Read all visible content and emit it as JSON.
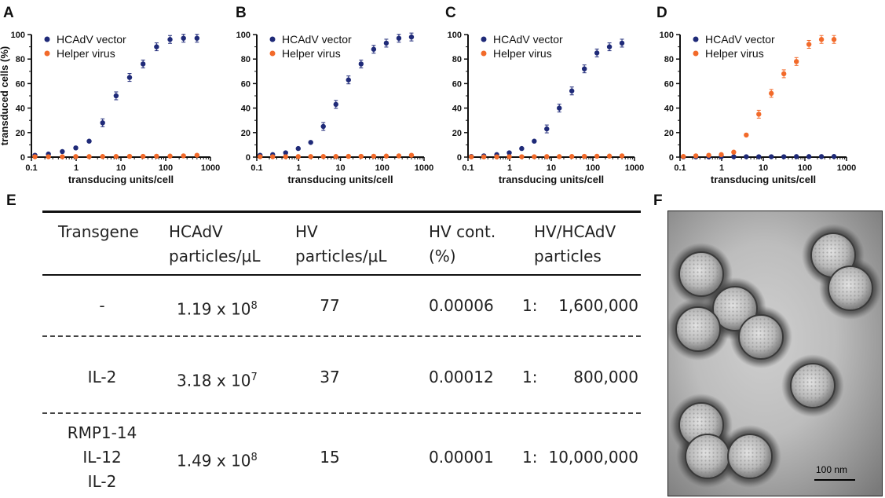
{
  "panels": {
    "A": "A",
    "B": "B",
    "C": "C",
    "D": "D",
    "E": "E",
    "F": "F"
  },
  "colors": {
    "hcadv": "#1f2a78",
    "helper": "#f26a2a",
    "axis": "#111111"
  },
  "legend_symbol": "●",
  "chart_data": [
    {
      "panel": "A",
      "type": "scatter",
      "xlabel": "transducing units/cell",
      "ylabel": "transduced cells (%)",
      "xscale": "log",
      "xlim": [
        0.1,
        1000
      ],
      "ylim": [
        0,
        100
      ],
      "xticks": [
        "0.1",
        "1",
        "10",
        "100",
        "1000"
      ],
      "yticks": [
        "0",
        "20",
        "40",
        "60",
        "80",
        "100"
      ],
      "legend_position": "top-left",
      "series": [
        {
          "name": "HCAdV vector",
          "x": [
            0.12,
            0.24,
            0.49,
            0.98,
            1.95,
            3.9,
            7.8,
            15.6,
            31.2,
            62.5,
            125,
            250,
            500
          ],
          "y": [
            1.5,
            2.5,
            4.5,
            7.5,
            13,
            28,
            50,
            65,
            76,
            90,
            96,
            97,
            97
          ]
        },
        {
          "name": "Helper virus",
          "x": [
            0.12,
            0.24,
            0.49,
            0.98,
            1.95,
            3.9,
            7.8,
            15.6,
            31.2,
            62.5,
            125,
            250,
            500
          ],
          "y": [
            0.3,
            0.3,
            0.3,
            0.4,
            0.4,
            0.5,
            0.5,
            0.6,
            0.6,
            0.7,
            0.8,
            1,
            1.5
          ]
        }
      ]
    },
    {
      "panel": "B",
      "type": "scatter",
      "xlabel": "transducing units/cell",
      "ylabel": "",
      "xscale": "log",
      "xlim": [
        0.1,
        1000
      ],
      "ylim": [
        0,
        100
      ],
      "xticks": [
        "0.1",
        "1",
        "10",
        "100",
        "1000"
      ],
      "yticks": [
        "0",
        "20",
        "40",
        "60",
        "80",
        "100"
      ],
      "legend_position": "top-left",
      "series": [
        {
          "name": "HCAdV vector",
          "x": [
            0.12,
            0.24,
            0.49,
            0.98,
            1.95,
            3.9,
            7.8,
            15.6,
            31.2,
            62.5,
            125,
            250,
            500
          ],
          "y": [
            1.5,
            2,
            3.5,
            7,
            12,
            25,
            43,
            63,
            76,
            88,
            93,
            97,
            98
          ]
        },
        {
          "name": "Helper virus",
          "x": [
            0.12,
            0.24,
            0.49,
            0.98,
            1.95,
            3.9,
            7.8,
            15.6,
            31.2,
            62.5,
            125,
            250,
            500
          ],
          "y": [
            0.3,
            0.3,
            0.3,
            0.4,
            0.4,
            0.5,
            0.5,
            0.6,
            0.6,
            0.7,
            0.8,
            1,
            1.5
          ]
        }
      ]
    },
    {
      "panel": "C",
      "type": "scatter",
      "xlabel": "transducing units/cell",
      "ylabel": "",
      "xscale": "log",
      "xlim": [
        0.1,
        1000
      ],
      "ylim": [
        0,
        100
      ],
      "xticks": [
        "0.1",
        "1",
        "10",
        "100",
        "1000"
      ],
      "yticks": [
        "0",
        "20",
        "40",
        "60",
        "80",
        "100"
      ],
      "legend_position": "top-left",
      "series": [
        {
          "name": "HCAdV vector",
          "x": [
            0.12,
            0.24,
            0.49,
            0.98,
            1.95,
            3.9,
            7.8,
            15.6,
            31.2,
            62.5,
            125,
            250,
            500
          ],
          "y": [
            0.5,
            1,
            2,
            3.5,
            7,
            13,
            23,
            40,
            54,
            72,
            85,
            90,
            93
          ]
        },
        {
          "name": "Helper virus",
          "x": [
            0.12,
            0.24,
            0.49,
            0.98,
            1.95,
            3.9,
            7.8,
            15.6,
            31.2,
            62.5,
            125,
            250,
            500
          ],
          "y": [
            0.2,
            0.2,
            0.2,
            0.3,
            0.3,
            0.3,
            0.4,
            0.4,
            0.5,
            0.6,
            0.7,
            0.8,
            1
          ]
        }
      ]
    },
    {
      "panel": "D",
      "type": "scatter",
      "xlabel": "transducing units/cell",
      "ylabel": "",
      "xscale": "log",
      "xlim": [
        0.1,
        1000
      ],
      "ylim": [
        0,
        100
      ],
      "xticks": [
        "0.1",
        "1",
        "10",
        "100",
        "1000"
      ],
      "yticks": [
        "0",
        "20",
        "40",
        "60",
        "80",
        "100"
      ],
      "legend_position": "top-left",
      "series": [
        {
          "name": "HCAdV vector",
          "x": [
            0.12,
            0.24,
            0.49,
            0.98,
            1.95,
            3.9,
            7.8,
            15.6,
            31.2,
            62.5,
            125,
            250,
            500
          ],
          "y": [
            0.2,
            0.2,
            0.2,
            0.3,
            0.3,
            0.3,
            0.3,
            0.3,
            0.3,
            0.4,
            0.4,
            0.4,
            0.5
          ]
        },
        {
          "name": "Helper virus",
          "x": [
            0.12,
            0.24,
            0.49,
            0.98,
            1.95,
            3.9,
            7.8,
            15.6,
            31.2,
            62.5,
            125,
            250,
            500
          ],
          "y": [
            0.5,
            1,
            1.5,
            2,
            4,
            18,
            35,
            52,
            68,
            78,
            92,
            96,
            96
          ]
        }
      ]
    }
  ],
  "table": {
    "headers": [
      [
        "Transgene"
      ],
      [
        "HCAdV",
        "particles/μL"
      ],
      [
        "HV",
        "particles/μL"
      ],
      [
        "HV cont.",
        "(%)"
      ],
      [
        "HV/HCAdV",
        "particles"
      ]
    ],
    "rows": [
      {
        "transgene": [
          "-"
        ],
        "hcadv_base": "1.19 x 10",
        "hcadv_exp": "8",
        "hv": "77",
        "cont": "0.00006",
        "ratio_prefix": "1:",
        "ratio_value": "1,600,000"
      },
      {
        "transgene": [
          "IL-2"
        ],
        "hcadv_base": "3.18 x 10",
        "hcadv_exp": "7",
        "hv": "37",
        "cont": "0.00012",
        "ratio_prefix": "1:",
        "ratio_value": "800,000"
      },
      {
        "transgene": [
          "RMP1-14",
          "IL-12",
          "IL-2"
        ],
        "hcadv_base": "1.49 x 10",
        "hcadv_exp": "8",
        "hv": "15",
        "cont": "0.00001",
        "ratio_prefix": "1:",
        "ratio_value": "10,000,000"
      }
    ]
  },
  "micrograph": {
    "scale_label": "100 nm"
  }
}
